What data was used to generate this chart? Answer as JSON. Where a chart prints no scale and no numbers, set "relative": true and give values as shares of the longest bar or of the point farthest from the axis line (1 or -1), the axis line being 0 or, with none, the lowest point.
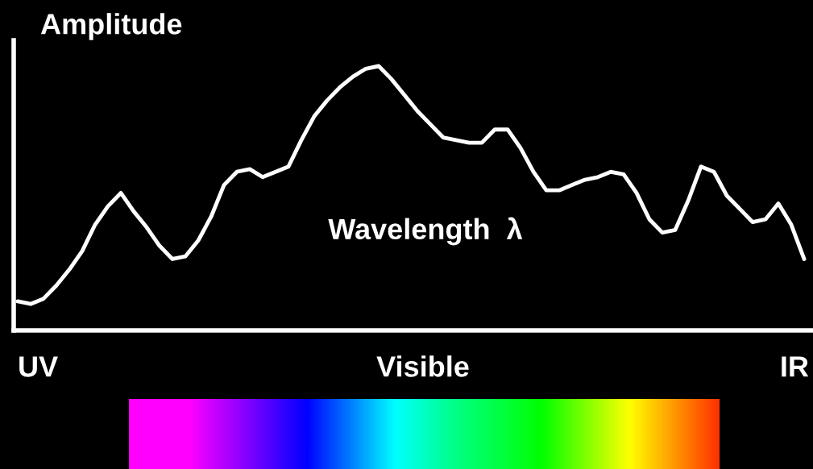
{
  "chart_data": {
    "type": "line",
    "relative": true,
    "ylabel": "Amplitude",
    "xlabel": "Wavelength  λ",
    "annotations": [
      "UV",
      "Visible",
      "IR"
    ],
    "categories": [
      null,
      null,
      null,
      null,
      null,
      null,
      null,
      null,
      null,
      null,
      null,
      null,
      null,
      null,
      null,
      null,
      null,
      null,
      null,
      null,
      null,
      null,
      null,
      null,
      null,
      null,
      null,
      null,
      null,
      null,
      null,
      null,
      null,
      null,
      null,
      null,
      null,
      null,
      null,
      null,
      null,
      null,
      null,
      null,
      null,
      null,
      null,
      null,
      null,
      null,
      null,
      null,
      null,
      null,
      null,
      null,
      null,
      null,
      null,
      null,
      null,
      null
    ],
    "series": [
      {
        "color": "#ffffff",
        "values": [
          0.11,
          0.1,
          0.12,
          0.17,
          0.23,
          0.3,
          0.4,
          0.47,
          0.52,
          0.45,
          0.39,
          0.32,
          0.27,
          0.28,
          0.34,
          0.43,
          0.55,
          0.6,
          0.61,
          0.58,
          0.6,
          0.62,
          0.72,
          0.81,
          0.87,
          0.92,
          0.96,
          0.99,
          1.0,
          0.95,
          0.89,
          0.83,
          0.78,
          0.73,
          0.72,
          0.71,
          0.71,
          0.76,
          0.76,
          0.69,
          0.6,
          0.53,
          0.53,
          0.55,
          0.57,
          0.58,
          0.6,
          0.59,
          0.52,
          0.42,
          0.37,
          0.38,
          0.49,
          0.62,
          0.6,
          0.51,
          0.46,
          0.41,
          0.42,
          0.48,
          0.4,
          0.27
        ]
      }
    ],
    "grid": false,
    "legend": false,
    "marker": "none",
    "line_style": "solid"
  }
}
